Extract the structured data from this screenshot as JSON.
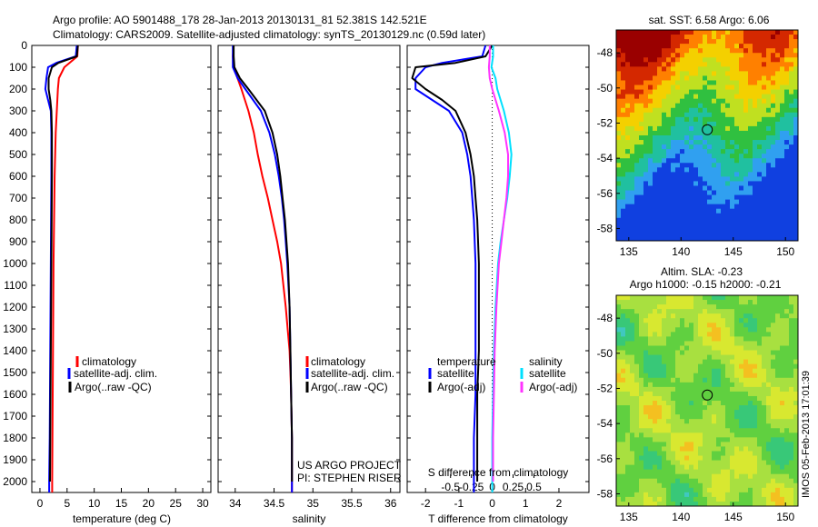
{
  "header": {
    "line1": "Argo profile: AO 5901488_178 28-Jan-2013 20130131_81 52.381S 142.521E",
    "line2": "Climatology: CARS2009. Satellite-adjusted climatology: synTS_20130129.nc (0.59d later)"
  },
  "depth_ticks": [
    "0",
    "100",
    "200",
    "300",
    "400",
    "500",
    "600",
    "700",
    "800",
    "900",
    "1000",
    "1100",
    "1200",
    "1300",
    "1400",
    "1500",
    "1600",
    "1700",
    "1800",
    "1900",
    "2000"
  ],
  "colors": {
    "climatology": "#ff0000",
    "satellite": "#0000ff",
    "argo": "#000000",
    "salinity_satellite": "#00e0ff",
    "salinity_argo": "#ff33ff"
  },
  "chart_data": [
    {
      "type": "line",
      "xlabel": "temperature (deg C)",
      "ylim": [
        2050,
        0
      ],
      "xlim": [
        -1.5,
        31.5
      ],
      "xticks": [
        "0",
        "5",
        "10",
        "15",
        "20",
        "25",
        "30"
      ],
      "legend": [
        "climatology",
        "satellite-adj. clim.",
        "Argo(..raw -QC)"
      ],
      "legend_position": "middle-left",
      "series": [
        {
          "name": "climatology",
          "depth": [
            0,
            50,
            100,
            150,
            200,
            300,
            400,
            500,
            600,
            700,
            800,
            900,
            1000,
            1200,
            1400,
            1600,
            1800,
            2000,
            2050
          ],
          "values": [
            7.0,
            6.9,
            4.5,
            3.5,
            3.3,
            3.1,
            2.9,
            2.8,
            2.7,
            2.65,
            2.6,
            2.55,
            2.5,
            2.45,
            2.4,
            2.35,
            2.3,
            2.25,
            2.25
          ]
        },
        {
          "name": "satellite-adj. clim.",
          "depth": [
            0,
            50,
            80,
            100,
            150,
            200,
            250,
            300,
            400,
            600,
            800,
            1000,
            1200,
            1400,
            1600,
            1800,
            2000,
            2050
          ],
          "values": [
            6.8,
            6.6,
            3.0,
            1.5,
            1.2,
            1.0,
            1.5,
            2.0,
            2.1,
            2.1,
            2.05,
            2.0,
            1.95,
            1.9,
            1.85,
            1.8,
            1.7,
            1.7
          ]
        },
        {
          "name": "Argo(..raw -QC)",
          "depth": [
            0,
            50,
            80,
            100,
            150,
            200,
            250,
            300,
            400,
            600,
            800,
            1000,
            1200,
            1400,
            1600,
            1800,
            2000
          ],
          "values": [
            7.0,
            6.8,
            3.4,
            2.2,
            1.6,
            1.6,
            1.9,
            2.1,
            2.2,
            2.2,
            2.15,
            2.1,
            2.05,
            2.0,
            1.95,
            1.9,
            1.85
          ]
        }
      ]
    },
    {
      "type": "line",
      "xlabel": "salinity",
      "ylim": [
        2050,
        0
      ],
      "xlim": [
        33.78,
        36.12
      ],
      "xticks": [
        "34",
        "34.5",
        "35",
        "35.5",
        "36"
      ],
      "legend": [
        "climatology",
        "satellite-adj. clim.",
        "Argo(..raw -QC)"
      ],
      "legend_position": "middle-right",
      "annotation": [
        "US ARGO PROJECT",
        "PI: STEPHEN RISER"
      ],
      "series": [
        {
          "name": "climatology",
          "depth": [
            0,
            50,
            100,
            200,
            300,
            400,
            500,
            600,
            700,
            800,
            900,
            1000,
            1200,
            1400,
            1500,
            1600,
            1800,
            2050
          ],
          "values": [
            33.98,
            33.97,
            33.98,
            34.08,
            34.17,
            34.24,
            34.29,
            34.35,
            34.42,
            34.48,
            34.54,
            34.59,
            34.65,
            34.7,
            34.71,
            34.72,
            34.73,
            34.73
          ]
        },
        {
          "name": "satellite-adj. clim.",
          "depth": [
            0,
            50,
            100,
            150,
            200,
            300,
            400,
            500,
            600,
            700,
            800,
            900,
            1000,
            1200,
            1400,
            1600,
            1800,
            2000,
            2050
          ],
          "values": [
            33.97,
            33.97,
            33.97,
            34.03,
            34.13,
            34.33,
            34.44,
            34.51,
            34.56,
            34.6,
            34.63,
            34.65,
            34.67,
            34.7,
            34.71,
            34.72,
            34.73,
            34.73,
            34.73
          ]
        },
        {
          "name": "Argo(..raw -QC)",
          "depth": [
            0,
            50,
            100,
            150,
            200,
            300,
            400,
            500,
            600,
            700,
            800,
            900,
            1000,
            1200,
            1400,
            1600,
            1800,
            2000
          ],
          "values": [
            33.98,
            33.98,
            33.99,
            34.06,
            34.17,
            34.38,
            34.48,
            34.54,
            34.58,
            34.61,
            34.64,
            34.66,
            34.68,
            34.7,
            34.71,
            34.72,
            34.73,
            34.73
          ]
        }
      ]
    },
    {
      "type": "line",
      "xlabel": "T difference from climatology",
      "xlabel_secondary": "S difference from climatology",
      "ylim": [
        2050,
        0
      ],
      "xlim": [
        -2.55,
        2.9
      ],
      "xticks": [
        "-2",
        "-1",
        "0",
        "1",
        "2"
      ],
      "xticks_secondary": [
        "-0.5",
        "-0.25",
        "0",
        "0.25",
        "0.5"
      ],
      "legend_headers": [
        "temperature",
        "salinity"
      ],
      "legend": [
        "satellite",
        "Argo(-adj)",
        "satellite",
        "Argo(-adj)"
      ],
      "legend_position": "lower-middle",
      "series": [
        {
          "name": "satellite",
          "variable": "T",
          "depth": [
            0,
            50,
            80,
            100,
            150,
            200,
            250,
            300,
            400,
            500,
            600,
            700,
            800,
            1000,
            1200,
            1400,
            1600,
            1800,
            2000,
            2050
          ],
          "values": [
            -0.2,
            -0.3,
            -1.5,
            -2.0,
            -2.3,
            -2.3,
            -1.8,
            -1.3,
            -0.9,
            -0.75,
            -0.65,
            -0.6,
            -0.55,
            -0.5,
            -0.5,
            -0.5,
            -0.5,
            -0.55,
            -0.55,
            -0.55
          ]
        },
        {
          "name": "Argo(-adj)",
          "variable": "T",
          "depth": [
            0,
            50,
            80,
            100,
            150,
            200,
            250,
            300,
            400,
            500,
            600,
            700,
            800,
            1000,
            1200,
            1400,
            1600,
            1800,
            2000
          ],
          "values": [
            0.0,
            -0.2,
            -1.1,
            -2.3,
            -2.4,
            -2.0,
            -1.5,
            -1.1,
            -0.8,
            -0.65,
            -0.55,
            -0.5,
            -0.45,
            -0.4,
            -0.4,
            -0.4,
            -0.45,
            -0.45,
            -0.45
          ]
        },
        {
          "name": "satellite",
          "variable": "S",
          "depth": [
            0,
            50,
            100,
            150,
            200,
            300,
            400,
            500,
            600,
            700,
            800,
            900,
            1000,
            1200,
            1400,
            1600,
            1800,
            2000,
            2050
          ],
          "values": [
            0.01,
            0.01,
            -0.01,
            0.04,
            0.06,
            0.14,
            0.2,
            0.23,
            0.21,
            0.18,
            0.14,
            0.1,
            0.07,
            0.04,
            0.02,
            0.01,
            0.0,
            0.0,
            0.0
          ]
        },
        {
          "name": "Argo(-adj)",
          "variable": "S",
          "depth": [
            0,
            50,
            100,
            150,
            200,
            300,
            400,
            500,
            600,
            700,
            800,
            900,
            1000,
            1200,
            1400,
            1600,
            1800,
            2000
          ],
          "values": [
            -0.03,
            -0.03,
            -0.04,
            -0.03,
            0.0,
            0.08,
            0.15,
            0.19,
            0.19,
            0.17,
            0.14,
            0.11,
            0.08,
            0.05,
            0.03,
            0.02,
            0.01,
            0.01
          ]
        }
      ]
    },
    {
      "type": "heatmap",
      "title": "sat. SST: 6.58 Argo: 6.06",
      "xlim": [
        133.8,
        151.2
      ],
      "ylim": [
        -58.7,
        -46.7
      ],
      "xticks": [
        "135",
        "140",
        "145",
        "150"
      ],
      "yticks": [
        "-48",
        "-50",
        "-52",
        "-54",
        "-56",
        "-58"
      ],
      "marker": {
        "lon": 142.521,
        "lat": -52.381
      },
      "colors": [
        "#9a0000",
        "#d42800",
        "#ff8000",
        "#f4d000",
        "#c0e020",
        "#30c040",
        "#20c0a0",
        "#30a0f0",
        "#1040e0"
      ]
    },
    {
      "type": "heatmap",
      "title": "Altim. SLA: -0.23",
      "subtitle": "Argo h1000: -0.15 h2000: -0.21",
      "xlim": [
        133.8,
        151.2
      ],
      "ylim": [
        -58.7,
        -46.7
      ],
      "xticks": [
        "135",
        "140",
        "145",
        "150"
      ],
      "yticks": [
        "-48",
        "-50",
        "-52",
        "-54",
        "-56",
        "-58"
      ],
      "marker": {
        "lon": 142.521,
        "lat": -52.381
      },
      "colors": [
        "#40c8c0",
        "#38c878",
        "#60d040",
        "#a8e040",
        "#d8e830",
        "#f4c020"
      ]
    }
  ],
  "footer_stamp": "IMOS 05-Feb-2013 17:01:39"
}
